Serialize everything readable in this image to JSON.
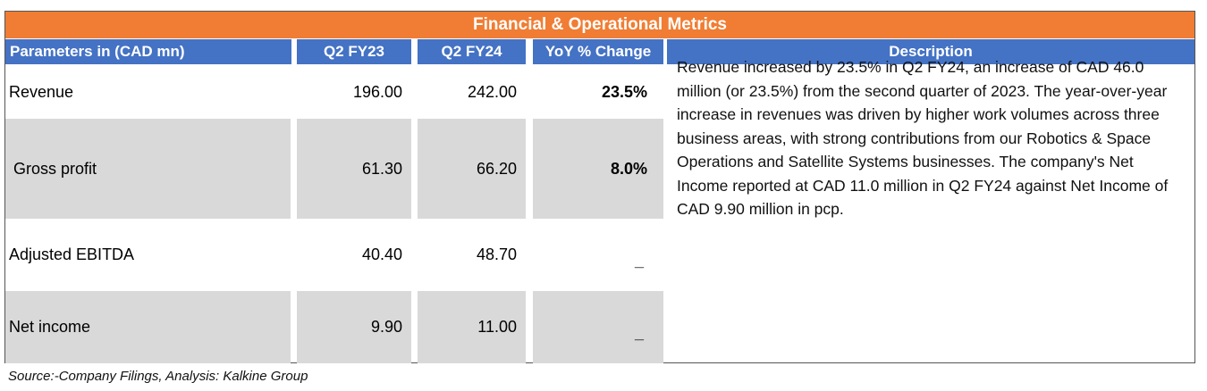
{
  "table": {
    "title": "Financial & Operational Metrics",
    "headers": {
      "parameter": "Parameters in (CAD mn)",
      "q2fy23": "Q2 FY23",
      "q2fy24": "Q2 FY24",
      "yoy": "YoY % Change",
      "description": "Description"
    },
    "rows": [
      {
        "parameter": "Revenue",
        "q2fy23": "196.00",
        "q2fy24": "242.00",
        "yoy": "23.5%"
      },
      {
        "parameter": " Gross profit",
        "q2fy23": "61.30",
        "q2fy24": "66.20",
        "yoy": "8.0%"
      },
      {
        "parameter": "Adjusted EBITDA",
        "q2fy23": "40.40",
        "q2fy24": "48.70",
        "yoy": "_"
      },
      {
        "parameter": "Net income",
        "q2fy23": "9.90",
        "q2fy24": "11.00",
        "yoy": "_"
      }
    ],
    "description": "Revenue increased  by 23.5% in  Q2 FY24, an increase of CAD 46.0 million (or 23.5%) from the second quarter of 2023. The year-over-year increase in revenues was driven by higher work volumes across  three business areas, with strong contributions from our Robotics & Space Operations and Satellite Systems businesses. The company's  Net Income reported at CAD 11.0  million in  Q2 FY24  against  Net Income of CAD 9.90 million in pcp."
  },
  "source": "Source:-Company Filings, Analysis: Kalkine Group",
  "colors": {
    "title_bar": "#f07d33",
    "header": "#4472c4",
    "row_shade": "#d9d9d9"
  }
}
